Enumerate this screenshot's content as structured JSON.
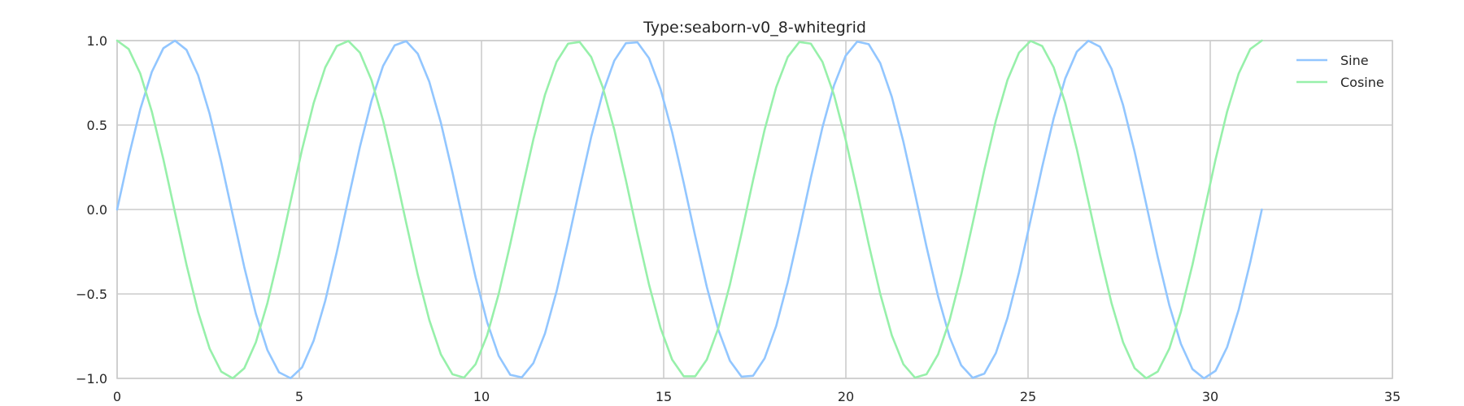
{
  "chart_data": {
    "type": "line",
    "title": "Type:seaborn-v0_8-whitegrid",
    "xlabel": "",
    "ylabel": "",
    "xlim": [
      0,
      35
    ],
    "ylim": [
      -1.0,
      1.0
    ],
    "x_ticks": [
      0,
      5,
      10,
      15,
      20,
      25,
      30,
      35
    ],
    "x_tick_labels": [
      "0",
      "5",
      "10",
      "15",
      "20",
      "25",
      "30",
      "35"
    ],
    "y_ticks": [
      1.0,
      0.5,
      0.0,
      -0.5,
      -1.0
    ],
    "y_tick_labels": [
      "1.0",
      "0.5",
      "0.0",
      "−0.5",
      "−1.0"
    ],
    "grid": true,
    "legend": "top-right",
    "x_range": [
      0,
      31.4159
    ],
    "num_points": 100,
    "series": [
      {
        "name": "Sine",
        "function": "sin",
        "color": "#92c6ff"
      },
      {
        "name": "Cosine",
        "function": "cos",
        "color": "#97f0aa"
      }
    ]
  }
}
